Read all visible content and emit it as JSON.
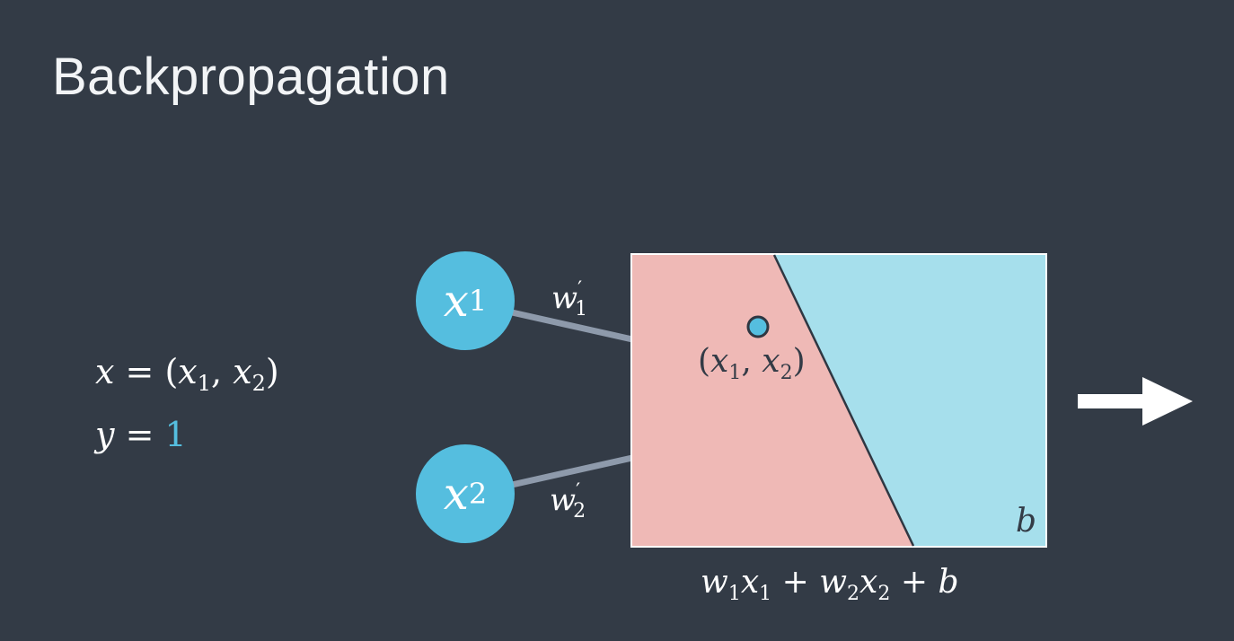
{
  "title": "Backpropagation",
  "equations": {
    "x_var": "x",
    "x_eq": "=",
    "x_open": "(",
    "x1": "x",
    "x1_sub": "1",
    "comma": ",",
    "x2": "x",
    "x2_sub": "2",
    "x_close": ")",
    "y_var": "y",
    "y_eq": "=",
    "y_value": "1"
  },
  "nodes": [
    {
      "var": "x",
      "sub": "1"
    },
    {
      "var": "x",
      "sub": "2"
    }
  ],
  "weights": [
    {
      "var": "w",
      "prime": "′",
      "sub": "1"
    },
    {
      "var": "w",
      "prime": "′",
      "sub": "2"
    }
  ],
  "plot": {
    "point_label": {
      "open": "(",
      "a": "x",
      "a_sub": "1",
      "comma": ",",
      "b": "x",
      "b_sub": "2",
      "close": ")"
    },
    "bias_label": "b"
  },
  "formula": {
    "w1": "w",
    "w1_sub": "1",
    "x1": "x",
    "x1_sub": "1",
    "plus1": "+",
    "w2": "w",
    "w2_sub": "2",
    "x2": "x",
    "x2_sub": "2",
    "plus2": "+",
    "b": "b"
  },
  "colors": {
    "background": "#333b46",
    "node": "#55bedf",
    "positive_region": "#a6dfec",
    "negative_region": "#efb9b6",
    "edge": "#8e9aab",
    "accent_value": "#55bedf"
  }
}
